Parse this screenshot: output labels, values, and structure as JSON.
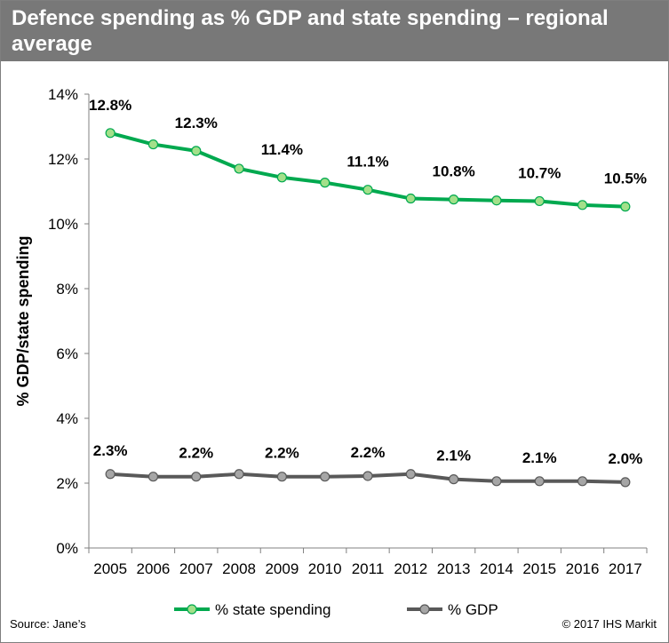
{
  "header": {
    "title": "Defence spending as % GDP and state spending – regional average"
  },
  "footer": {
    "source": "Source: Jane’s",
    "copyright": "© 2017 IHS Markit"
  },
  "colors": {
    "title_bar": "#787878",
    "state_line": "#00a94f",
    "state_marker": "#a3e08a",
    "gdp_line": "#595959",
    "gdp_marker": "#a6a6a6"
  },
  "chart_data": {
    "type": "line",
    "title": "Defence spending as % GDP and state spending – regional average",
    "xlabel": "",
    "ylabel": "% GDP/state spending",
    "categories": [
      "2005",
      "2006",
      "2007",
      "2008",
      "2009",
      "2010",
      "2011",
      "2012",
      "2013",
      "2014",
      "2015",
      "2016",
      "2017"
    ],
    "ylim": [
      0,
      14
    ],
    "yticks": [
      0,
      2,
      4,
      6,
      8,
      10,
      12,
      14
    ],
    "ytick_labels": [
      "0%",
      "2%",
      "4%",
      "6%",
      "8%",
      "10%",
      "12%",
      "14%"
    ],
    "grid": false,
    "legend_position": "bottom",
    "series": [
      {
        "name": "% state spending",
        "values": [
          12.8,
          12.45,
          12.25,
          11.7,
          11.43,
          11.27,
          11.05,
          10.78,
          10.75,
          10.72,
          10.7,
          10.58,
          10.53
        ],
        "data_labels": [
          {
            "index": 0,
            "text": "12.8%"
          },
          {
            "index": 2,
            "text": "12.3%"
          },
          {
            "index": 4,
            "text": "11.4%"
          },
          {
            "index": 6,
            "text": "11.1%"
          },
          {
            "index": 8,
            "text": "10.8%"
          },
          {
            "index": 10,
            "text": "10.7%"
          },
          {
            "index": 12,
            "text": "10.5%"
          }
        ]
      },
      {
        "name": "% GDP",
        "values": [
          2.28,
          2.2,
          2.2,
          2.28,
          2.2,
          2.2,
          2.22,
          2.28,
          2.12,
          2.06,
          2.06,
          2.06,
          2.03
        ],
        "data_labels": [
          {
            "index": 0,
            "text": "2.3%"
          },
          {
            "index": 2,
            "text": "2.2%"
          },
          {
            "index": 4,
            "text": "2.2%"
          },
          {
            "index": 6,
            "text": "2.2%"
          },
          {
            "index": 8,
            "text": "2.1%"
          },
          {
            "index": 10,
            "text": "2.1%"
          },
          {
            "index": 12,
            "text": "2.0%"
          }
        ]
      }
    ]
  }
}
